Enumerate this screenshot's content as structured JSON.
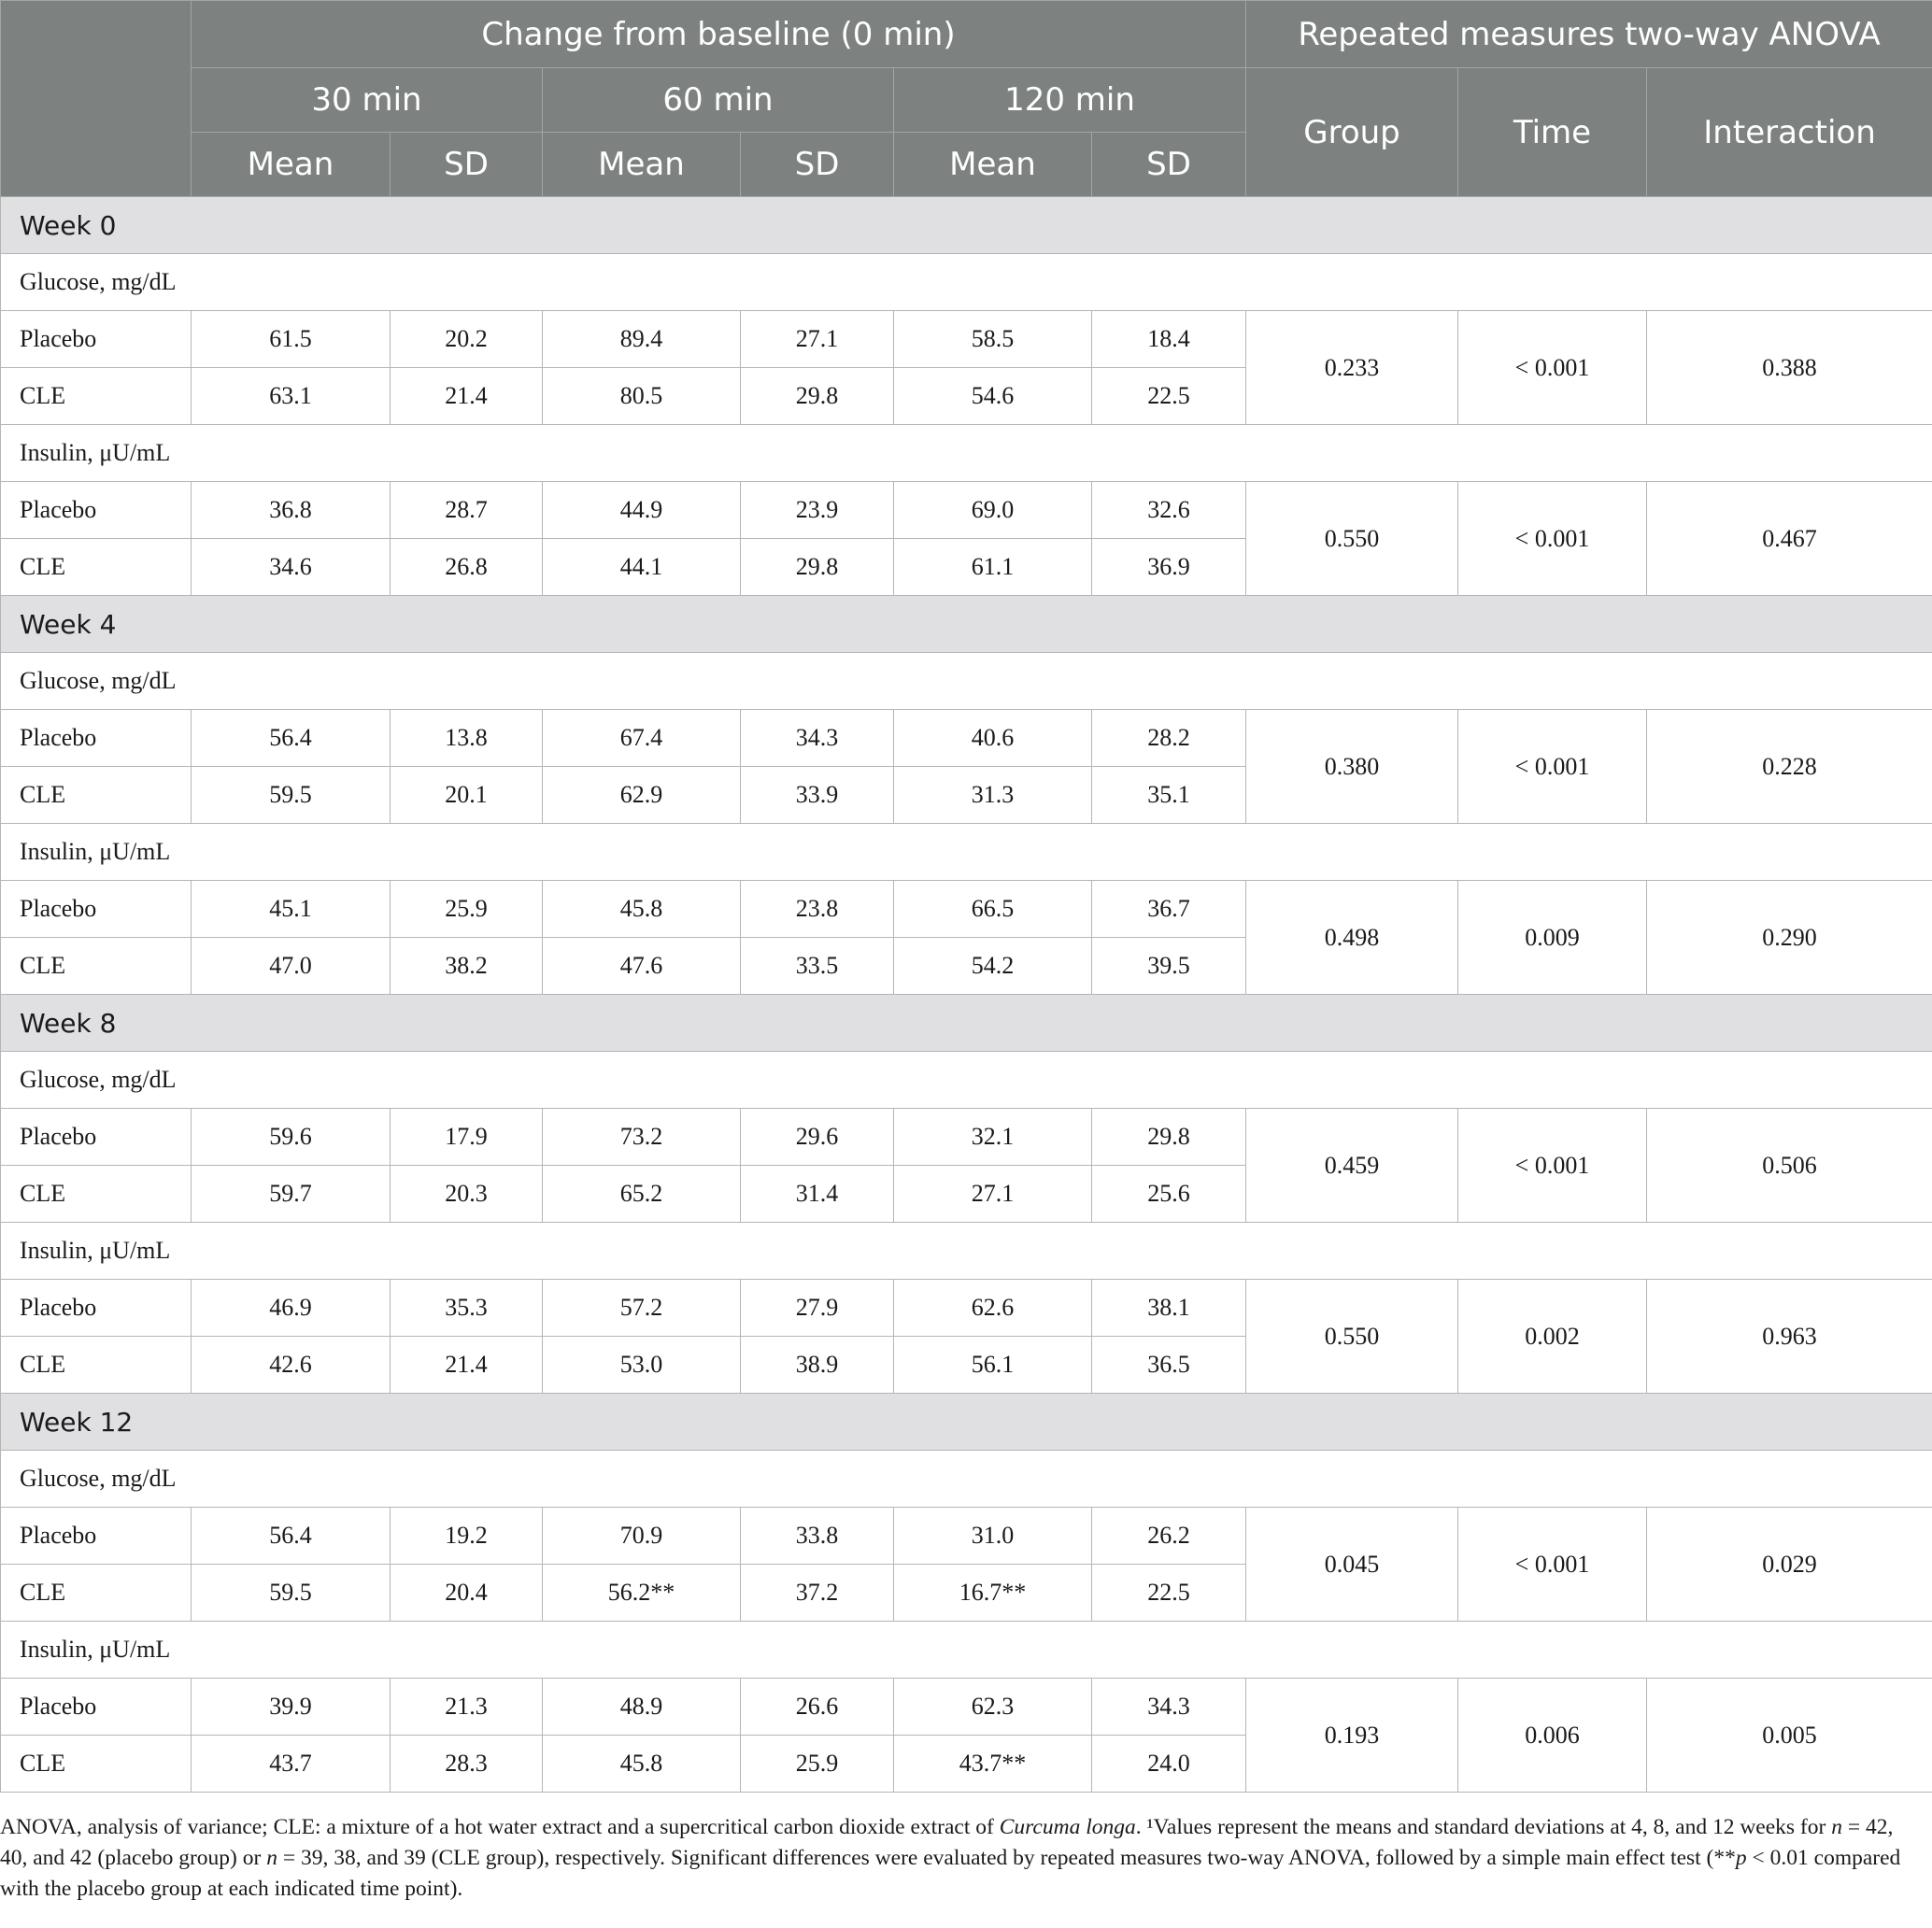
{
  "header": {
    "change_from_baseline": "Change from baseline (0 min)",
    "anova": "Repeated measures two-way ANOVA",
    "times": [
      "30 min",
      "60 min",
      "120 min"
    ],
    "mean": "Mean",
    "sd": "SD",
    "group": "Group",
    "time": "Time",
    "interaction": "Interaction"
  },
  "sections": [
    {
      "week": "Week 0",
      "metrics": [
        {
          "name": "Glucose, mg/dL",
          "rows": [
            {
              "label": "Placebo",
              "values": [
                "61.5",
                "20.2",
                "89.4",
                "27.1",
                "58.5",
                "18.4"
              ]
            },
            {
              "label": "CLE",
              "values": [
                "63.1",
                "21.4",
                "80.5",
                "29.8",
                "54.6",
                "22.5"
              ]
            }
          ],
          "anova": {
            "group": "0.233",
            "time": "< 0.001",
            "interaction": "0.388"
          }
        },
        {
          "name": "Insulin, μU/mL",
          "rows": [
            {
              "label": "Placebo",
              "values": [
                "36.8",
                "28.7",
                "44.9",
                "23.9",
                "69.0",
                "32.6"
              ]
            },
            {
              "label": "CLE",
              "values": [
                "34.6",
                "26.8",
                "44.1",
                "29.8",
                "61.1",
                "36.9"
              ]
            }
          ],
          "anova": {
            "group": "0.550",
            "time": "< 0.001",
            "interaction": "0.467"
          }
        }
      ]
    },
    {
      "week": "Week 4",
      "metrics": [
        {
          "name": "Glucose, mg/dL",
          "rows": [
            {
              "label": "Placebo",
              "values": [
                "56.4",
                "13.8",
                "67.4",
                "34.3",
                "40.6",
                "28.2"
              ]
            },
            {
              "label": "CLE",
              "values": [
                "59.5",
                "20.1",
                "62.9",
                "33.9",
                "31.3",
                "35.1"
              ]
            }
          ],
          "anova": {
            "group": "0.380",
            "time": "< 0.001",
            "interaction": "0.228"
          }
        },
        {
          "name": "Insulin, μU/mL",
          "rows": [
            {
              "label": "Placebo",
              "values": [
                "45.1",
                "25.9",
                "45.8",
                "23.8",
                "66.5",
                "36.7"
              ]
            },
            {
              "label": "CLE",
              "values": [
                "47.0",
                "38.2",
                "47.6",
                "33.5",
                "54.2",
                "39.5"
              ]
            }
          ],
          "anova": {
            "group": "0.498",
            "time": "0.009",
            "interaction": "0.290"
          }
        }
      ]
    },
    {
      "week": "Week 8",
      "metrics": [
        {
          "name": "Glucose, mg/dL",
          "rows": [
            {
              "label": "Placebo",
              "values": [
                "59.6",
                "17.9",
                "73.2",
                "29.6",
                "32.1",
                "29.8"
              ]
            },
            {
              "label": "CLE",
              "values": [
                "59.7",
                "20.3",
                "65.2",
                "31.4",
                "27.1",
                "25.6"
              ]
            }
          ],
          "anova": {
            "group": "0.459",
            "time": "< 0.001",
            "interaction": "0.506"
          }
        },
        {
          "name": "Insulin, μU/mL",
          "rows": [
            {
              "label": "Placebo",
              "values": [
                "46.9",
                "35.3",
                "57.2",
                "27.9",
                "62.6",
                "38.1"
              ]
            },
            {
              "label": "CLE",
              "values": [
                "42.6",
                "21.4",
                "53.0",
                "38.9",
                "56.1",
                "36.5"
              ]
            }
          ],
          "anova": {
            "group": "0.550",
            "time": "0.002",
            "interaction": "0.963"
          }
        }
      ]
    },
    {
      "week": "Week 12",
      "metrics": [
        {
          "name": "Glucose, mg/dL",
          "rows": [
            {
              "label": "Placebo",
              "values": [
                "56.4",
                "19.2",
                "70.9",
                "33.8",
                "31.0",
                "26.2"
              ]
            },
            {
              "label": "CLE",
              "values": [
                "59.5",
                "20.4",
                "56.2**",
                "37.2",
                "16.7**",
                "22.5"
              ]
            }
          ],
          "anova": {
            "group": "0.045",
            "time": "< 0.001",
            "interaction": "0.029"
          }
        },
        {
          "name": "Insulin, μU/mL",
          "rows": [
            {
              "label": "Placebo",
              "values": [
                "39.9",
                "21.3",
                "48.9",
                "26.6",
                "62.3",
                "34.3"
              ]
            },
            {
              "label": "CLE",
              "values": [
                "43.7",
                "28.3",
                "45.8",
                "25.9",
                "43.7**",
                "24.0"
              ]
            }
          ],
          "anova": {
            "group": "0.193",
            "time": "0.006",
            "interaction": "0.005"
          }
        }
      ]
    }
  ],
  "footnote": {
    "part1": "ANOVA, analysis of variance; CLE: a mixture of a hot water extract and a supercritical carbon dioxide extract of ",
    "species": "Curcuma longa",
    "part2": ". ¹Values represent the means and standard deviations at 4, 8, and 12 weeks for ",
    "n1": "n",
    "part3": " = 42, 40, and 42 (placebo group) or ",
    "n2": "n",
    "part4": " = 39, 38, and 39 (CLE group), respectively. Significant differences were evaluated by repeated measures two-way ANOVA, followed by a simple main effect test (**",
    "p": "p",
    "part5": " < 0.01 compared with the placebo group at each indicated time point)."
  }
}
